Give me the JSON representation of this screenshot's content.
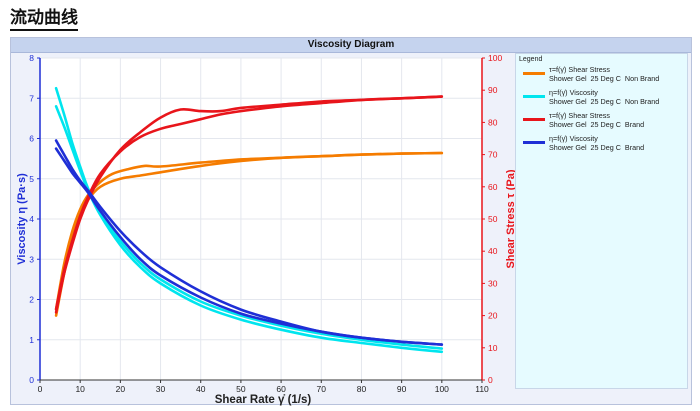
{
  "page": {
    "heading": "流动曲线"
  },
  "legend": {
    "title": "Legend"
  },
  "chart_data": {
    "type": "line",
    "title": "Viscosity Diagram",
    "xlabel": "Shear Rate γ̇ (1/s)",
    "ylabel_left": "Viscosity η (Pa·s)",
    "ylabel_right": "Shear Stress τ (Pa)",
    "xlim": [
      0,
      110
    ],
    "ylim_left": [
      0,
      8
    ],
    "ylim_right": [
      0,
      100
    ],
    "xticks": [
      0,
      10,
      20,
      30,
      40,
      50,
      60,
      70,
      80,
      90,
      100,
      110
    ],
    "yticks_left": [
      0,
      1,
      2,
      3,
      4,
      5,
      6,
      7,
      8
    ],
    "yticks_right": [
      0,
      10,
      20,
      30,
      40,
      50,
      60,
      70,
      80,
      90,
      100
    ],
    "grid": true,
    "legend_position": "right",
    "axis_colors": {
      "left": "#1f2fd6",
      "right": "#e8151b"
    },
    "series": [
      {
        "name": "τ=f(γ̇) Shear Stress",
        "legend_line2": "Shower Gel  25 Deg C  Non Brand",
        "color": "#f57c00",
        "axis": "right",
        "x": [
          4,
          6,
          8,
          10,
          12,
          15,
          20,
          25,
          30,
          40,
          50,
          60,
          70,
          80,
          90,
          100
        ],
        "y": [
          20,
          33,
          44,
          51,
          56,
          60,
          62.5,
          63.5,
          64.5,
          66.5,
          68,
          69,
          69.5,
          70,
          70.3,
          70.5
        ]
      },
      {
        "name": "τ=f(γ̇) Shear Stress",
        "legend_line2": "",
        "color": "#f57c00",
        "axis": "right",
        "x": [
          4,
          6,
          8,
          10,
          12,
          15,
          18,
          22,
          26,
          30,
          40,
          50,
          60,
          70,
          80,
          90,
          100
        ],
        "y": [
          22,
          36,
          46,
          53,
          57.5,
          61.5,
          64,
          65.5,
          66.5,
          66.3,
          67.5,
          68.5,
          69,
          69.5,
          70,
          70.3,
          70.5
        ]
      },
      {
        "name": "η=f(γ̇) Viscosity",
        "legend_line2": "Shower Gel  25 Deg C  Non Brand",
        "color": "#00e5ee",
        "axis": "left",
        "x": [
          4,
          6,
          8,
          10,
          12,
          15,
          20,
          25,
          30,
          40,
          50,
          60,
          70,
          80,
          90,
          100
        ],
        "y": [
          7.25,
          6.6,
          5.9,
          5.3,
          4.75,
          4.15,
          3.45,
          2.9,
          2.5,
          1.95,
          1.6,
          1.35,
          1.15,
          1.0,
          0.88,
          0.78
        ]
      },
      {
        "name": "η=f(γ̇) Viscosity",
        "legend_line2": "",
        "color": "#00e5ee",
        "axis": "left",
        "x": [
          4,
          6,
          8,
          10,
          12,
          15,
          20,
          25,
          30,
          40,
          50,
          60,
          70,
          80,
          90,
          100
        ],
        "y": [
          6.8,
          6.3,
          5.75,
          5.2,
          4.7,
          4.1,
          3.35,
          2.8,
          2.4,
          1.85,
          1.5,
          1.25,
          1.05,
          0.92,
          0.8,
          0.7
        ]
      },
      {
        "name": "τ=f(γ̇) Shear Stress",
        "legend_line2": "Shower Gel  25 Deg C  Brand",
        "color": "#e8151b",
        "axis": "right",
        "x": [
          4,
          6,
          8,
          10,
          12,
          15,
          20,
          25,
          30,
          35,
          40,
          45,
          50,
          60,
          70,
          80,
          90,
          100
        ],
        "y": [
          21,
          33,
          42,
          50,
          56,
          63,
          71.5,
          77,
          81.5,
          84,
          83.5,
          83.5,
          84.5,
          85.5,
          86.5,
          87,
          87.5,
          88
        ]
      },
      {
        "name": "τ=f(γ̇) Shear Stress",
        "legend_line2": "",
        "color": "#e8151b",
        "axis": "right",
        "x": [
          4,
          6,
          8,
          10,
          12,
          15,
          20,
          25,
          30,
          35,
          40,
          45,
          50,
          60,
          70,
          80,
          90,
          100
        ],
        "y": [
          22,
          34,
          43,
          51,
          57,
          64,
          71,
          75.5,
          78,
          79.5,
          81,
          82.5,
          83.5,
          85,
          86,
          87,
          87.5,
          88
        ]
      },
      {
        "name": "η=f(γ̇) Viscosity",
        "legend_line2": "Shower Gel  25 Deg C  Brand",
        "color": "#1f2fd6",
        "axis": "left",
        "x": [
          4,
          6,
          8,
          10,
          12,
          15,
          20,
          25,
          30,
          40,
          50,
          60,
          70,
          80,
          90,
          100
        ],
        "y": [
          5.95,
          5.6,
          5.25,
          4.95,
          4.7,
          4.3,
          3.7,
          3.2,
          2.8,
          2.2,
          1.75,
          1.45,
          1.2,
          1.05,
          0.95,
          0.88
        ]
      },
      {
        "name": "η=f(γ̇) Viscosity",
        "legend_line2": "",
        "color": "#1f2fd6",
        "axis": "left",
        "x": [
          4,
          6,
          8,
          10,
          12,
          15,
          20,
          25,
          30,
          40,
          50,
          60,
          70,
          80,
          90,
          100
        ],
        "y": [
          5.75,
          5.45,
          5.15,
          4.9,
          4.65,
          4.2,
          3.55,
          3.0,
          2.6,
          2.05,
          1.65,
          1.4,
          1.2,
          1.05,
          0.95,
          0.88
        ]
      }
    ]
  }
}
